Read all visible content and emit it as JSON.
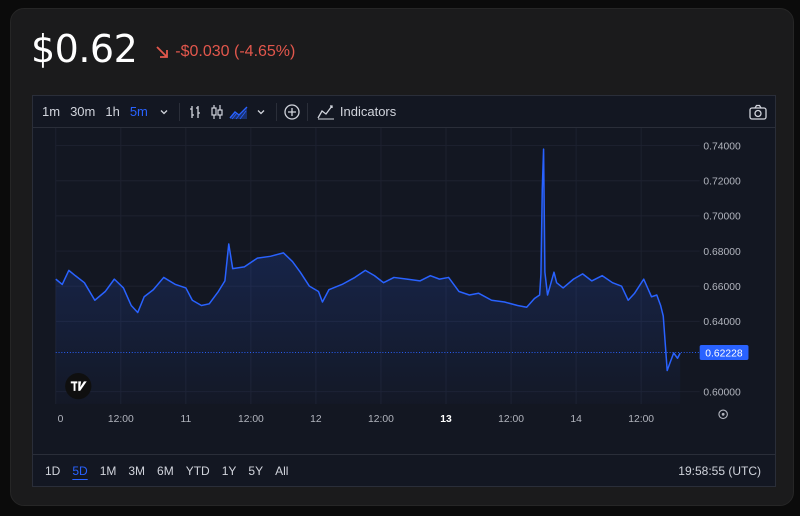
{
  "header": {
    "price": "$0.62",
    "change": "-$0.030 (-4.65%)",
    "change_color": "#e2574c"
  },
  "toolbar": {
    "intervals": [
      "1m",
      "30m",
      "1h",
      "5m"
    ],
    "active_interval": "5m",
    "indicators_label": "Indicators"
  },
  "ranges": {
    "items": [
      "1D",
      "5D",
      "1M",
      "3M",
      "6M",
      "YTD",
      "1Y",
      "5Y",
      "All"
    ],
    "active": "5D"
  },
  "clock": "19:58:55 (UTC)",
  "colors": {
    "line": "#2962ff",
    "accent": "#2962ff",
    "background": "#131722"
  },
  "chart_data": {
    "type": "area",
    "y_ticks": [
      "0.74000",
      "0.72000",
      "0.70000",
      "0.68000",
      "0.66000",
      "0.64000",
      "0.60000"
    ],
    "x_ticks": [
      "0",
      "12:00",
      "11",
      "12:00",
      "12",
      "12:00",
      "13",
      "12:00",
      "14",
      "12:00"
    ],
    "bold_x_tick": "13",
    "last_value_label": "0.62228",
    "ylim": [
      0.593,
      0.75
    ],
    "x_days": [
      10,
      14.95
    ],
    "series": [
      {
        "values": [
          [
            10.0,
            0.664
          ],
          [
            10.05,
            0.661
          ],
          [
            10.1,
            0.669
          ],
          [
            10.15,
            0.666
          ],
          [
            10.22,
            0.662
          ],
          [
            10.3,
            0.652
          ],
          [
            10.38,
            0.657
          ],
          [
            10.45,
            0.664
          ],
          [
            10.52,
            0.659
          ],
          [
            10.58,
            0.649
          ],
          [
            10.63,
            0.645
          ],
          [
            10.68,
            0.654
          ],
          [
            10.75,
            0.658
          ],
          [
            10.83,
            0.665
          ],
          [
            10.92,
            0.661
          ],
          [
            11.0,
            0.659
          ],
          [
            11.05,
            0.652
          ],
          [
            11.12,
            0.649
          ],
          [
            11.18,
            0.65
          ],
          [
            11.25,
            0.657
          ],
          [
            11.3,
            0.663
          ],
          [
            11.33,
            0.684
          ],
          [
            11.36,
            0.67
          ],
          [
            11.45,
            0.671
          ],
          [
            11.55,
            0.676
          ],
          [
            11.65,
            0.677
          ],
          [
            11.75,
            0.679
          ],
          [
            11.82,
            0.674
          ],
          [
            11.88,
            0.668
          ],
          [
            11.95,
            0.66
          ],
          [
            12.02,
            0.657
          ],
          [
            12.05,
            0.651
          ],
          [
            12.1,
            0.658
          ],
          [
            12.2,
            0.661
          ],
          [
            12.3,
            0.665
          ],
          [
            12.38,
            0.669
          ],
          [
            12.45,
            0.666
          ],
          [
            12.52,
            0.662
          ],
          [
            12.6,
            0.665
          ],
          [
            12.7,
            0.664
          ],
          [
            12.8,
            0.663
          ],
          [
            12.88,
            0.666
          ],
          [
            12.95,
            0.664
          ],
          [
            13.02,
            0.665
          ],
          [
            13.1,
            0.657
          ],
          [
            13.18,
            0.655
          ],
          [
            13.25,
            0.656
          ],
          [
            13.35,
            0.652
          ],
          [
            13.45,
            0.651
          ],
          [
            13.55,
            0.649
          ],
          [
            13.62,
            0.648
          ],
          [
            13.68,
            0.653
          ],
          [
            13.72,
            0.655
          ],
          [
            13.73,
            0.667
          ],
          [
            13.74,
            0.715
          ],
          [
            13.75,
            0.738
          ],
          [
            13.76,
            0.668
          ],
          [
            13.78,
            0.655
          ],
          [
            13.8,
            0.66
          ],
          [
            13.83,
            0.668
          ],
          [
            13.85,
            0.662
          ],
          [
            13.9,
            0.659
          ],
          [
            13.98,
            0.664
          ],
          [
            14.05,
            0.667
          ],
          [
            14.12,
            0.663
          ],
          [
            14.2,
            0.666
          ],
          [
            14.28,
            0.662
          ],
          [
            14.35,
            0.66
          ],
          [
            14.4,
            0.652
          ],
          [
            14.45,
            0.656
          ],
          [
            14.52,
            0.664
          ],
          [
            14.58,
            0.654
          ],
          [
            14.62,
            0.655
          ],
          [
            14.65,
            0.649
          ],
          [
            14.67,
            0.643
          ],
          [
            14.7,
            0.612
          ],
          [
            14.72,
            0.616
          ],
          [
            14.75,
            0.622
          ],
          [
            14.78,
            0.619
          ],
          [
            14.8,
            0.622
          ]
        ]
      }
    ]
  }
}
